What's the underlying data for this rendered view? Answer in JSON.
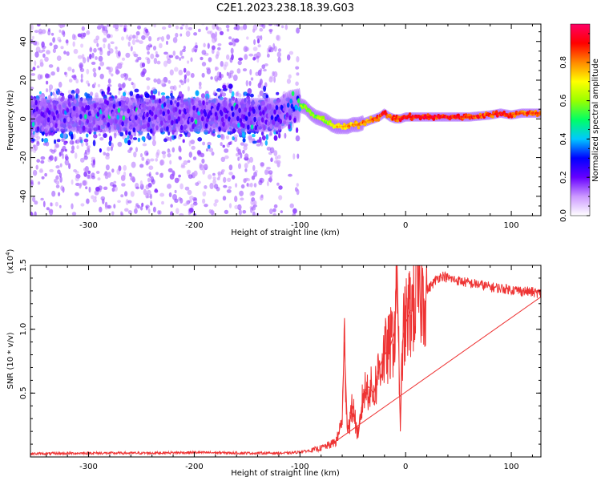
{
  "title": "C2E1.2023.238.18.39.G03",
  "chart_data": [
    {
      "type": "heatmap",
      "title": "C2E1.2023.238.18.39.G03",
      "xlabel": "Height of straight line (km)",
      "ylabel": "Frequency (Hz)",
      "xlim": [
        -355,
        128
      ],
      "ylim": [
        -50,
        49
      ],
      "xticks": [
        -300,
        -200,
        -100,
        0,
        100
      ],
      "xtick_labels": [
        "-300",
        "-200",
        "-100",
        "0",
        "100"
      ],
      "yticks": [
        -40,
        -20,
        0,
        20,
        40
      ],
      "ytick_labels": [
        "-40",
        "-20",
        "0",
        "20",
        "40"
      ],
      "grid": false,
      "description_points": {
        "trace_height_km": [
          -355,
          -120,
          -110,
          -100,
          -95,
          -90,
          -85,
          -80,
          -75,
          -70,
          -65,
          -60,
          -55,
          -50,
          -45,
          -40,
          -35,
          -30,
          -25,
          -20,
          -15,
          -10,
          -5,
          0,
          20,
          40,
          60,
          80,
          90,
          100,
          110,
          128
        ],
        "trace_freq_hz": [
          2,
          2,
          6,
          7,
          6,
          3,
          1,
          0,
          -1,
          -3,
          -4,
          -4,
          -4,
          -3,
          -3,
          -2,
          -1,
          0,
          1,
          3,
          1,
          0,
          0,
          1,
          1,
          1,
          1,
          2,
          3,
          2,
          3,
          3
        ],
        "trace_amplitude": [
          0.35,
          0.4,
          0.55,
          0.6,
          0.6,
          0.65,
          0.6,
          0.65,
          0.6,
          0.7,
          0.75,
          0.75,
          0.8,
          0.8,
          0.85,
          0.85,
          0.85,
          0.9,
          0.9,
          0.95,
          0.9,
          0.9,
          0.95,
          0.95,
          0.95,
          0.95,
          0.95,
          0.9,
          0.95,
          0.9,
          0.9,
          0.9
        ]
      },
      "colorbar": {
        "label": "Normalized spectral amplitude",
        "range": [
          0.0,
          1.0
        ],
        "ticks": [
          0.0,
          0.2,
          0.4,
          0.6,
          0.8
        ],
        "tick_labels": [
          "0.0",
          "0.2",
          "0.4",
          "0.6",
          "0.8"
        ],
        "colors": [
          "#ffffff",
          "#cc99ff",
          "#6600ff",
          "#0000ff",
          "#00c8ff",
          "#00ff66",
          "#99ff00",
          "#ffff00",
          "#ff8800",
          "#ff0000",
          "#ff0066"
        ]
      }
    },
    {
      "type": "line",
      "xlabel": "Height of straight line (km)",
      "ylabel": "SNR (10 * v/v)",
      "yscale_note": "(x10",
      "yscale_exponent": "4",
      "yscale_close": ")",
      "xlim": [
        -355,
        128
      ],
      "ylim": [
        0,
        1.5
      ],
      "xticks": [
        -300,
        -200,
        -100,
        0,
        100
      ],
      "xtick_labels": [
        "-300",
        "-200",
        "-100",
        "0",
        "100"
      ],
      "yticks": [
        0.5,
        1.0,
        1.5
      ],
      "ytick_labels": [
        "0.5",
        "1.0",
        "1.5"
      ],
      "grid": false,
      "color": "#ee3333",
      "series": [
        {
          "name": "SNR",
          "x": [
            -355,
            -300,
            -250,
            -200,
            -150,
            -120,
            -110,
            -100,
            -90,
            -80,
            -70,
            -65,
            -60,
            -58,
            -55,
            -50,
            -45,
            -40,
            -35,
            -30,
            -25,
            -20,
            -15,
            -10,
            -8,
            -5,
            -3,
            0,
            5,
            10,
            20,
            30,
            35,
            40,
            50,
            60,
            70,
            80,
            90,
            100,
            110,
            120,
            128
          ],
          "y": [
            0.025,
            0.03,
            0.03,
            0.035,
            0.03,
            0.03,
            0.03,
            0.04,
            0.05,
            0.07,
            0.1,
            0.13,
            0.3,
            0.9,
            0.2,
            0.4,
            0.15,
            0.5,
            0.55,
            0.5,
            0.7,
            0.8,
            0.85,
            1.0,
            1.5,
            0.2,
            0.9,
            1.05,
            1.15,
            1.25,
            1.3,
            1.4,
            1.42,
            1.4,
            1.38,
            1.36,
            1.35,
            1.33,
            1.32,
            1.31,
            1.3,
            1.29,
            1.28
          ]
        }
      ]
    }
  ]
}
